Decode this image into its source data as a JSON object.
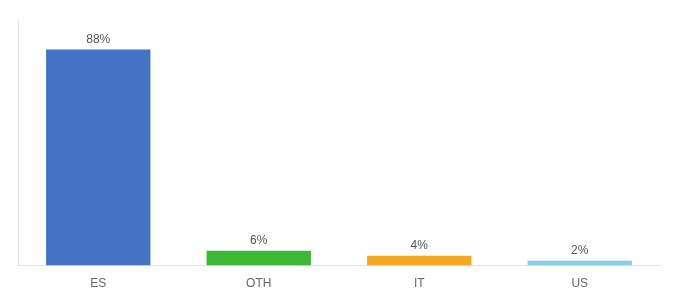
{
  "chart_data": {
    "type": "bar",
    "categories": [
      "ES",
      "OTH",
      "IT",
      "US"
    ],
    "values": [
      88,
      6,
      4,
      2
    ],
    "value_labels": [
      "88%",
      "6%",
      "4%",
      "2%"
    ],
    "colors": [
      "#4472c4",
      "#3cb832",
      "#f5a623",
      "#87ceeb"
    ],
    "ylim": [
      0,
      100
    ],
    "grid": false,
    "data_labels": true,
    "tick_labels": "x"
  }
}
